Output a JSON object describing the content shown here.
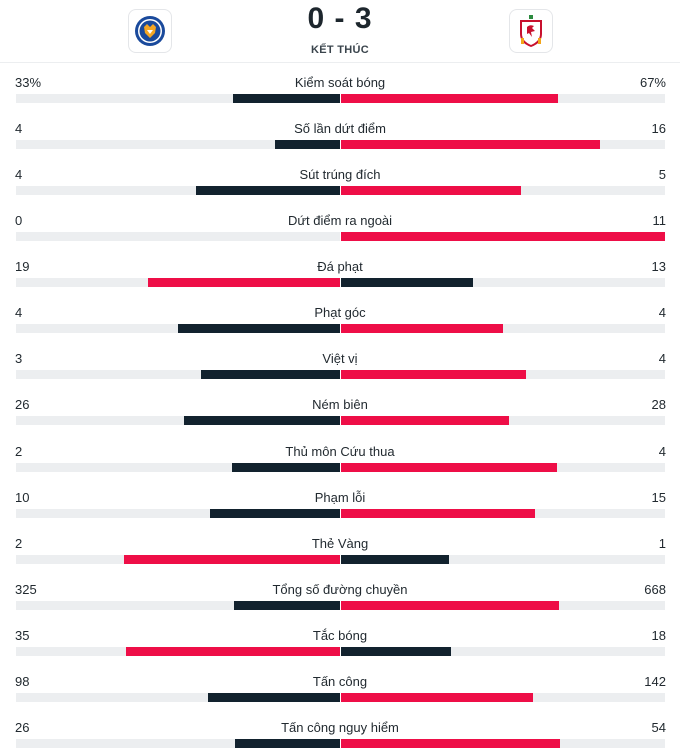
{
  "match": {
    "score": "0 - 3",
    "status": "KẾT THÚC",
    "home_logo_icon": "leicester-fox-crest-icon",
    "away_logo_icon": "liverpool-liverbird-crest-icon"
  },
  "colors": {
    "dark": "#12222e",
    "red": "#ee0e47",
    "track": "#eceef0"
  },
  "stats": [
    {
      "label": "Kiểm soát bóng",
      "home": "33%",
      "away": "67%",
      "home_frac": 0.33,
      "away_frac": 0.67,
      "leader": "away"
    },
    {
      "label": "Số lần dứt điểm",
      "home": "4",
      "away": "16",
      "home_frac": 0.2,
      "away_frac": 0.8,
      "leader": "away"
    },
    {
      "label": "Sút trúng đích",
      "home": "4",
      "away": "5",
      "home_frac": 0.444,
      "away_frac": 0.556,
      "leader": "away"
    },
    {
      "label": "Dứt điểm ra ngoài",
      "home": "0",
      "away": "11",
      "home_frac": 0.0,
      "away_frac": 1.0,
      "leader": "away"
    },
    {
      "label": "Đá phạt",
      "home": "19",
      "away": "13",
      "home_frac": 0.594,
      "away_frac": 0.406,
      "leader": "home"
    },
    {
      "label": "Phạt góc",
      "home": "4",
      "away": "4",
      "home_frac": 0.5,
      "away_frac": 0.5,
      "leader": "tie"
    },
    {
      "label": "Việt vị",
      "home": "3",
      "away": "4",
      "home_frac": 0.429,
      "away_frac": 0.571,
      "leader": "away"
    },
    {
      "label": "Ném biên",
      "home": "26",
      "away": "28",
      "home_frac": 0.481,
      "away_frac": 0.519,
      "leader": "away"
    },
    {
      "label": "Thủ môn Cứu thua",
      "home": "2",
      "away": "4",
      "home_frac": 0.333,
      "away_frac": 0.667,
      "leader": "away"
    },
    {
      "label": "Phạm lỗi",
      "home": "10",
      "away": "15",
      "home_frac": 0.4,
      "away_frac": 0.6,
      "leader": "away"
    },
    {
      "label": "Thẻ Vàng",
      "home": "2",
      "away": "1",
      "home_frac": 0.667,
      "away_frac": 0.333,
      "leader": "home"
    },
    {
      "label": "Tổng số đường chuyền",
      "home": "325",
      "away": "668",
      "home_frac": 0.327,
      "away_frac": 0.673,
      "leader": "away"
    },
    {
      "label": "Tắc bóng",
      "home": "35",
      "away": "18",
      "home_frac": 0.66,
      "away_frac": 0.34,
      "leader": "home"
    },
    {
      "label": "Tấn công",
      "home": "98",
      "away": "142",
      "home_frac": 0.408,
      "away_frac": 0.592,
      "leader": "away"
    },
    {
      "label": "Tấn công nguy hiểm",
      "home": "26",
      "away": "54",
      "home_frac": 0.325,
      "away_frac": 0.675,
      "leader": "away"
    }
  ]
}
